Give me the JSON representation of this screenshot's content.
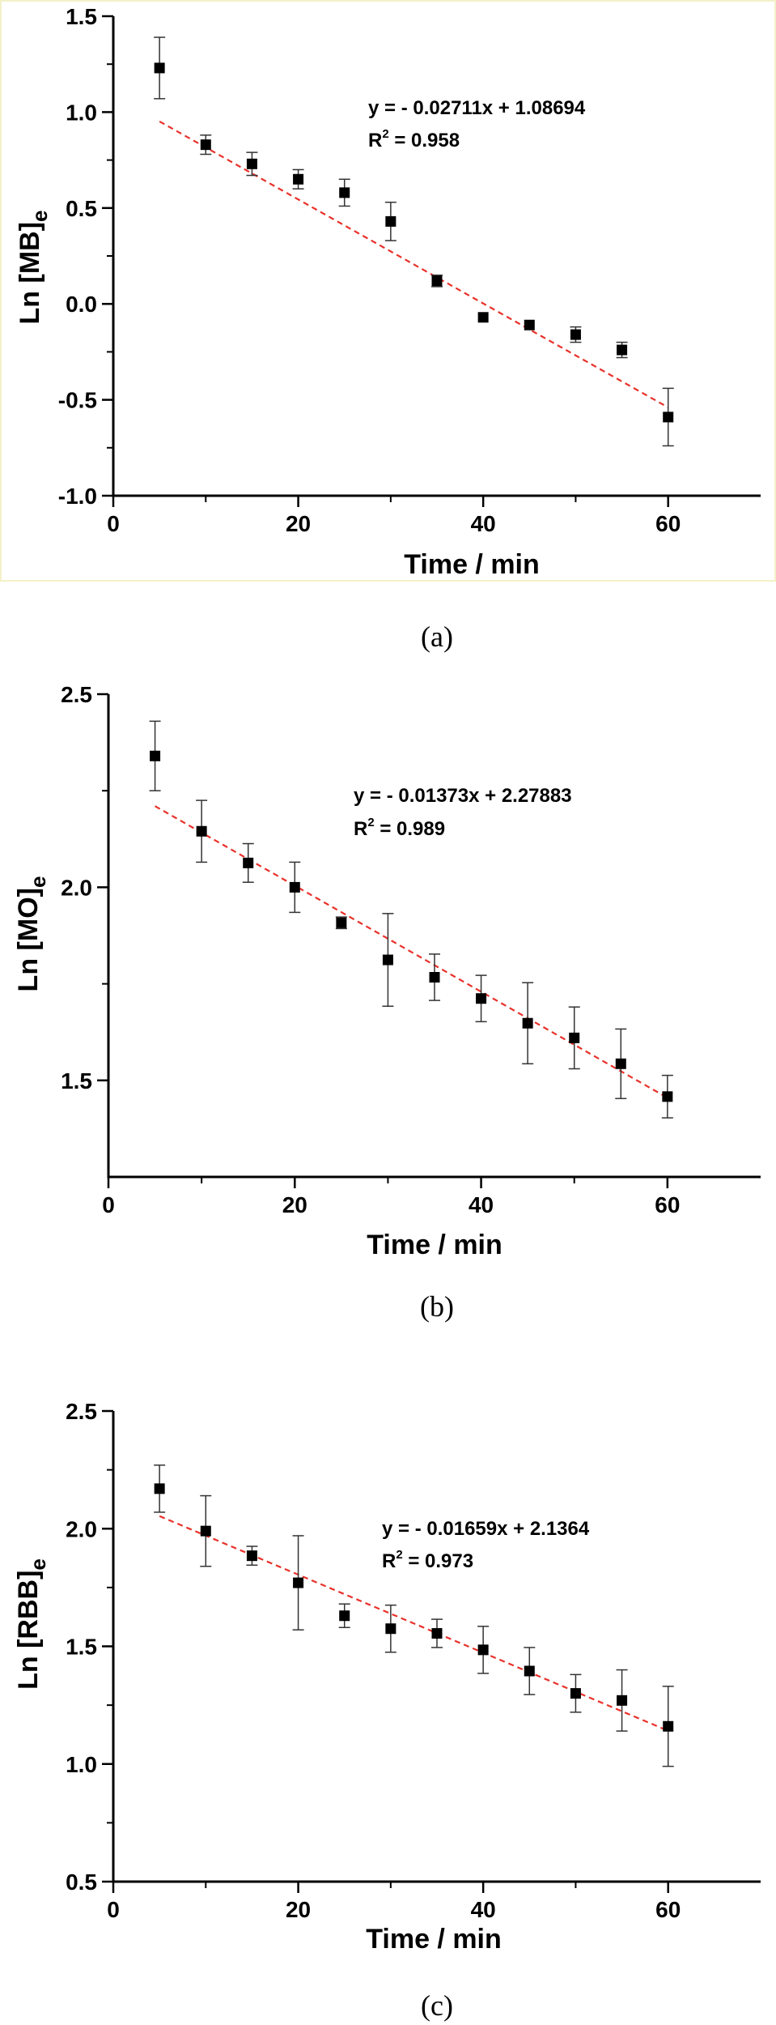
{
  "chart_data": [
    {
      "type": "scatter",
      "caption": "(a)",
      "xlabel": "Time / min",
      "ylabel_main": "Ln [MB]",
      "ylabel_sub": "e",
      "xlim": [
        0,
        70
      ],
      "ylim": [
        -1.0,
        1.5
      ],
      "xticks": [
        0,
        20,
        40,
        60
      ],
      "xtick_labels": [
        "0",
        "20",
        "40",
        "60"
      ],
      "yticks": [
        -1.0,
        -0.5,
        0.0,
        0.5,
        1.0,
        1.5
      ],
      "ytick_labels": [
        "-1.0",
        "-0.5",
        "0.0",
        "0.5",
        "1.0",
        "1.5"
      ],
      "grid": false,
      "series": [
        {
          "x": [
            5,
            10,
            15,
            20,
            25,
            30,
            35,
            40,
            45,
            50,
            55,
            60
          ],
          "y": [
            1.23,
            0.83,
            0.73,
            0.65,
            0.58,
            0.43,
            0.12,
            -0.07,
            -0.11,
            -0.16,
            -0.24,
            -0.59
          ],
          "err": [
            0.16,
            0.05,
            0.06,
            0.05,
            0.07,
            0.1,
            0.03,
            0.0,
            0.0,
            0.04,
            0.04,
            0.15
          ]
        }
      ],
      "fit": {
        "slope": -0.02711,
        "intercept": 1.08694,
        "x_range": [
          5,
          60
        ],
        "color": "#e8312a"
      },
      "equation": "y = - 0.02711x + 1.08694",
      "r2_prefix": "R",
      "r2_sup": "2",
      "r2_value": " = 0.958"
    },
    {
      "type": "scatter",
      "caption": "(b)",
      "xlabel": "Time / min",
      "ylabel_main": "Ln [MO]",
      "ylabel_sub": "e",
      "xlim": [
        0,
        70
      ],
      "ylim": [
        1.25,
        2.5
      ],
      "xticks": [
        0,
        20,
        40,
        60
      ],
      "xtick_labels": [
        "0",
        "20",
        "40",
        "60"
      ],
      "yticks": [
        1.5,
        2.0,
        2.5
      ],
      "ytick_labels": [
        "1.5",
        "2.0",
        "2.5"
      ],
      "grid": false,
      "series": [
        {
          "x": [
            5,
            10,
            15,
            20,
            25,
            30,
            35,
            40,
            45,
            50,
            55,
            60
          ],
          "y": [
            2.34,
            2.145,
            2.063,
            2.0,
            1.908,
            1.812,
            1.767,
            1.712,
            1.648,
            1.61,
            1.543,
            1.458
          ],
          "err": [
            0.09,
            0.08,
            0.05,
            0.065,
            0.015,
            0.12,
            0.06,
            0.06,
            0.105,
            0.08,
            0.09,
            0.055
          ]
        }
      ],
      "fit": {
        "slope": -0.01373,
        "intercept": 2.27883,
        "x_range": [
          5,
          60
        ],
        "color": "#e8312a"
      },
      "equation": "y = - 0.01373x + 2.27883",
      "r2_prefix": "R",
      "r2_sup": "2",
      "r2_value": " = 0.989"
    },
    {
      "type": "scatter",
      "caption": "(c)",
      "xlabel": "Time / min",
      "ylabel_main": "Ln [RBB]",
      "ylabel_sub": "e",
      "xlim": [
        0,
        70
      ],
      "ylim": [
        0.5,
        2.5
      ],
      "xticks": [
        0,
        20,
        40,
        60
      ],
      "xtick_labels": [
        "0",
        "20",
        "40",
        "60"
      ],
      "yticks": [
        0.5,
        1.0,
        1.5,
        2.0,
        2.5
      ],
      "ytick_labels": [
        "0.5",
        "1.0",
        "1.5",
        "2.0",
        "2.5"
      ],
      "grid": false,
      "series": [
        {
          "x": [
            5,
            10,
            15,
            20,
            25,
            30,
            35,
            40,
            45,
            50,
            55,
            60
          ],
          "y": [
            2.17,
            1.99,
            1.885,
            1.77,
            1.63,
            1.575,
            1.555,
            1.485,
            1.395,
            1.3,
            1.27,
            1.16
          ],
          "err": [
            0.1,
            0.15,
            0.04,
            0.2,
            0.05,
            0.1,
            0.06,
            0.1,
            0.1,
            0.08,
            0.13,
            0.17
          ]
        }
      ],
      "fit": {
        "slope": -0.01659,
        "intercept": 2.1364,
        "x_range": [
          5,
          60
        ],
        "color": "#e8312a"
      },
      "equation": "y = - 0.01659x + 2.1364",
      "r2_prefix": "R",
      "r2_sup": "2",
      "r2_value": " = 0.973"
    }
  ]
}
